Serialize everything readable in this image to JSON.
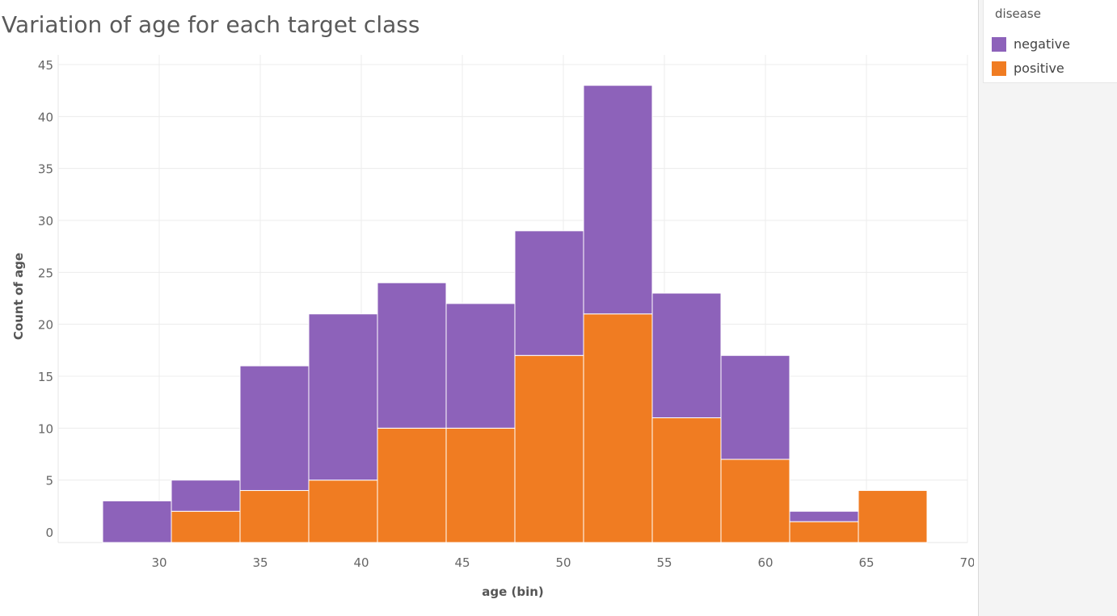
{
  "chart_data": {
    "type": "bar",
    "title": "Variation of age for each target class",
    "xlabel": "age (bin)",
    "ylabel": "Count of age",
    "stacked": true,
    "bin_width": 3.4,
    "bin_starts": [
      27.2,
      30.6,
      34.0,
      37.4,
      40.8,
      44.2,
      47.6,
      51.0,
      54.4,
      57.8,
      61.2,
      64.6
    ],
    "series": [
      {
        "name": "positive",
        "color": "#f07c22",
        "values": [
          0,
          2,
          4,
          5,
          10,
          10,
          17,
          21,
          11,
          7,
          1,
          4
        ]
      },
      {
        "name": "negative",
        "color": "#8d62ba",
        "values": [
          3,
          3,
          12,
          16,
          14,
          12,
          12,
          22,
          12,
          10,
          1,
          0
        ]
      }
    ],
    "xticks": [
      30,
      35,
      40,
      45,
      50,
      55,
      60,
      65,
      70
    ],
    "yticks": [
      0,
      5,
      10,
      15,
      20,
      25,
      30,
      35,
      40,
      45
    ],
    "xlim": [
      25,
      70
    ],
    "ylim": [
      0,
      45
    ],
    "grid": true,
    "legend_position": "top-right"
  },
  "legend": {
    "title": "disease",
    "items": [
      {
        "label": "negative",
        "color": "#8d62ba"
      },
      {
        "label": "positive",
        "color": "#f07c22"
      }
    ]
  }
}
